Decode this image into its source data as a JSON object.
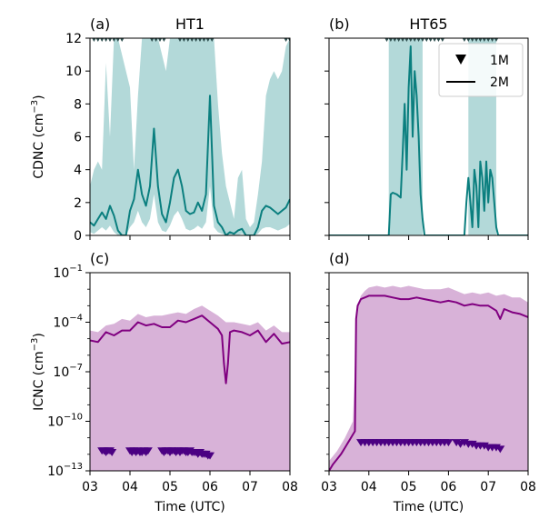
{
  "chart_data": [
    {
      "id": "a",
      "type": "line",
      "panel_label": "(a)",
      "title": "HT1",
      "ylabel": "CDNC (cm$^{-3}$)",
      "ylabel_text": "CDNC (cm",
      "ylabel_sup": "−3",
      "ylabel_end": ")",
      "xlim": [
        3,
        8
      ],
      "ylim": [
        0,
        12
      ],
      "yticks": [
        0,
        2,
        4,
        6,
        8,
        10,
        12
      ],
      "yticklabels": [
        "0",
        "2",
        "4",
        "6",
        "8",
        "10",
        "12"
      ],
      "xticks": [
        3,
        4,
        5,
        6,
        7,
        8
      ],
      "show_xticklabels": false,
      "show_yticklabels": true,
      "color_line": "#0b7f7f",
      "color_fill": "#b3d9d9",
      "series_2m": {
        "x": [
          3.0,
          3.1,
          3.2,
          3.3,
          3.4,
          3.5,
          3.6,
          3.7,
          3.8,
          3.9,
          4.0,
          4.1,
          4.2,
          4.3,
          4.4,
          4.5,
          4.6,
          4.7,
          4.8,
          4.9,
          5.0,
          5.1,
          5.2,
          5.3,
          5.4,
          5.5,
          5.6,
          5.7,
          5.8,
          5.9,
          6.0,
          6.1,
          6.2,
          6.3,
          6.4,
          6.5,
          6.6,
          6.7,
          6.8,
          6.9,
          7.0,
          7.1,
          7.2,
          7.3,
          7.4,
          7.5,
          7.6,
          7.7,
          7.8,
          7.9,
          8.0
        ],
        "y": [
          0.8,
          0.6,
          1.0,
          1.4,
          1.0,
          1.8,
          1.2,
          0.3,
          0.0,
          0.0,
          1.5,
          2.2,
          4.0,
          2.5,
          1.8,
          3.0,
          6.5,
          3.0,
          1.3,
          0.8,
          2.0,
          3.5,
          4.0,
          3.0,
          1.5,
          1.3,
          1.4,
          2.0,
          1.5,
          2.5,
          8.5,
          1.8,
          0.8,
          0.5,
          0.0,
          0.2,
          0.1,
          0.3,
          0.4,
          0.0,
          0.0,
          0.0,
          0.5,
          1.5,
          1.8,
          1.7,
          1.5,
          1.3,
          1.5,
          1.7,
          2.2
        ]
      },
      "band_2m": {
        "x": [
          3.0,
          3.1,
          3.2,
          3.3,
          3.4,
          3.5,
          3.6,
          3.7,
          3.8,
          3.9,
          4.0,
          4.1,
          4.2,
          4.3,
          4.4,
          4.5,
          4.6,
          4.7,
          4.8,
          4.9,
          5.0,
          5.1,
          5.2,
          5.3,
          5.4,
          5.5,
          5.6,
          5.7,
          5.8,
          5.9,
          6.0,
          6.1,
          6.2,
          6.3,
          6.4,
          6.5,
          6.6,
          6.7,
          6.8,
          6.9,
          7.0,
          7.1,
          7.2,
          7.3,
          7.4,
          7.5,
          7.6,
          7.7,
          7.8,
          7.9,
          8.0
        ],
        "upper": [
          3.0,
          4.0,
          4.5,
          4.0,
          10.5,
          6.0,
          12.0,
          12.0,
          11.0,
          10.0,
          9.0,
          4.0,
          8.5,
          12.0,
          12.0,
          12.0,
          12.0,
          12.0,
          11.0,
          10.0,
          12.0,
          12.0,
          12.0,
          12.0,
          12.0,
          12.0,
          12.0,
          12.0,
          12.0,
          12.0,
          12.0,
          12.0,
          8.0,
          5.0,
          3.0,
          2.0,
          1.0,
          3.5,
          4.0,
          1.0,
          0.5,
          0.8,
          2.5,
          4.5,
          8.5,
          9.5,
          10.0,
          9.5,
          10.0,
          11.5,
          12.0
        ],
        "lower": [
          0.2,
          0.1,
          0.3,
          0.5,
          0.3,
          0.6,
          0.2,
          0.0,
          0.0,
          0.0,
          0.5,
          0.8,
          1.5,
          0.8,
          0.5,
          1.0,
          2.5,
          0.8,
          0.3,
          0.2,
          0.6,
          1.2,
          1.5,
          1.0,
          0.4,
          0.3,
          0.4,
          0.6,
          0.4,
          0.8,
          3.0,
          0.5,
          0.2,
          0.1,
          0.0,
          0.0,
          0.0,
          0.0,
          0.1,
          0.0,
          0.0,
          0.0,
          0.1,
          0.4,
          0.5,
          0.5,
          0.4,
          0.3,
          0.4,
          0.5,
          0.7
        ]
      },
      "markers_1m": {
        "x": [
          3.1,
          3.2,
          3.3,
          3.4,
          3.5,
          3.6,
          3.7,
          3.8,
          4.55,
          4.65,
          4.75,
          4.85,
          5.25,
          5.35,
          5.45,
          5.55,
          5.65,
          5.75,
          5.85,
          5.95,
          6.05,
          7.9,
          8.0
        ],
        "y": 12.0
      }
    },
    {
      "id": "b",
      "type": "line",
      "panel_label": "(b)",
      "title": "HT65",
      "xlim": [
        3,
        8
      ],
      "ylim": [
        0,
        12
      ],
      "yticks": [
        0,
        2,
        4,
        6,
        8,
        10,
        12
      ],
      "xticks": [
        3,
        4,
        5,
        6,
        7,
        8
      ],
      "show_xticklabels": false,
      "show_yticklabels": false,
      "color_line": "#0b7f7f",
      "color_fill": "#b3d9d9",
      "legend": {
        "position": "upper right",
        "entries": [
          {
            "marker": "triangle-down",
            "label": "1M"
          },
          {
            "marker": "line",
            "label": "2M"
          }
        ]
      },
      "series_2m": {
        "x": [
          3.0,
          4.5,
          4.55,
          4.6,
          4.7,
          4.8,
          4.85,
          4.9,
          4.95,
          5.0,
          5.05,
          5.1,
          5.15,
          5.2,
          5.25,
          5.3,
          5.35,
          5.4,
          6.4,
          6.45,
          6.5,
          6.55,
          6.6,
          6.65,
          6.7,
          6.75,
          6.8,
          6.85,
          6.9,
          6.95,
          7.0,
          7.05,
          7.1,
          7.15,
          7.2,
          7.25,
          8.0
        ],
        "y": [
          0.0,
          0.0,
          2.5,
          2.6,
          2.5,
          2.3,
          5.0,
          8.0,
          4.0,
          9.0,
          11.5,
          6.0,
          10.0,
          8.5,
          6.0,
          2.5,
          1.0,
          0.0,
          0.0,
          2.0,
          3.5,
          2.0,
          0.5,
          4.0,
          3.0,
          0.5,
          4.5,
          3.5,
          1.5,
          4.5,
          2.0,
          4.0,
          3.5,
          2.0,
          0.5,
          0.0,
          0.0
        ]
      },
      "band_2m": {
        "segments": [
          {
            "x": [
              4.5,
              5.35
            ],
            "upper": 12.0,
            "lower": 0.0
          },
          {
            "x": [
              6.5,
              7.2
            ],
            "upper": 12.0,
            "lower": 0.0
          }
        ]
      },
      "markers_1m": {
        "x": [
          4.45,
          4.55,
          4.65,
          4.75,
          4.85,
          4.95,
          5.05,
          5.15,
          5.25,
          5.35,
          5.45,
          5.55,
          5.65,
          5.75,
          5.85,
          6.4,
          6.5,
          6.6,
          6.7,
          6.8,
          6.9,
          7.0,
          7.1,
          7.2
        ],
        "y": 12.0
      }
    },
    {
      "id": "c",
      "type": "line",
      "panel_label": "(c)",
      "ylabel": "ICNC (cm$^{-3}$)",
      "ylabel_text": "ICNC (cm",
      "ylabel_sup": "−3",
      "ylabel_end": ")",
      "xlabel": "Time (UTC)",
      "yscale": "log",
      "xlim": [
        3,
        8
      ],
      "ylim": [
        1e-13,
        0.1
      ],
      "yticks_exp": [
        -1,
        -4,
        -7,
        -10,
        -13
      ],
      "yticklabel_base": "10",
      "yticklabel_exp": [
        "−1",
        "−4",
        "−7",
        "−10",
        "−13"
      ],
      "xticks": [
        3,
        4,
        5,
        6,
        7,
        8
      ],
      "xticklabels": [
        "03",
        "04",
        "05",
        "06",
        "07",
        "08"
      ],
      "show_yticklabels": true,
      "color_line": "#800080",
      "color_fill": "#d8b2d8",
      "color_markers": "#4b0082",
      "series_2m_log10": {
        "x": [
          3.0,
          3.2,
          3.4,
          3.6,
          3.8,
          4.0,
          4.2,
          4.4,
          4.6,
          4.8,
          5.0,
          5.2,
          5.4,
          5.6,
          5.8,
          6.0,
          6.2,
          6.3,
          6.35,
          6.4,
          6.45,
          6.5,
          6.6,
          6.8,
          7.0,
          7.2,
          7.4,
          7.6,
          7.8,
          8.0
        ],
        "y": [
          -5.1,
          -5.2,
          -4.6,
          -4.8,
          -4.5,
          -4.5,
          -4.0,
          -4.2,
          -4.1,
          -4.3,
          -4.3,
          -3.9,
          -4.0,
          -3.8,
          -3.6,
          -4.0,
          -4.4,
          -4.8,
          -6.5,
          -7.7,
          -6.5,
          -4.6,
          -4.5,
          -4.6,
          -4.8,
          -4.5,
          -5.2,
          -4.7,
          -5.3,
          -5.2
        ]
      },
      "band_upper_log10": {
        "x": [
          3.0,
          3.2,
          3.4,
          3.6,
          3.8,
          4.0,
          4.2,
          4.4,
          4.6,
          4.8,
          5.0,
          5.2,
          5.4,
          5.6,
          5.8,
          6.0,
          6.2,
          6.4,
          6.6,
          6.8,
          7.0,
          7.2,
          7.4,
          7.6,
          7.8,
          8.0
        ],
        "y": [
          -4.5,
          -4.6,
          -4.2,
          -4.1,
          -3.8,
          -3.9,
          -3.5,
          -3.7,
          -3.6,
          -3.6,
          -3.5,
          -3.4,
          -3.5,
          -3.2,
          -3.0,
          -3.3,
          -3.6,
          -4.0,
          -4.0,
          -4.1,
          -4.2,
          -4.0,
          -4.5,
          -4.2,
          -4.6,
          -4.6
        ]
      },
      "markers_1m_log10": {
        "x": [
          3.3,
          3.35,
          3.4,
          3.45,
          3.5,
          3.55,
          4.0,
          4.05,
          4.1,
          4.15,
          4.2,
          4.25,
          4.3,
          4.35,
          4.4,
          4.45,
          4.8,
          4.85,
          4.9,
          4.95,
          5.0,
          5.05,
          5.1,
          5.15,
          5.2,
          5.25,
          5.3,
          5.35,
          5.4,
          5.45,
          5.5,
          5.55,
          5.6,
          5.65,
          5.7,
          5.75,
          5.8,
          5.85,
          5.9,
          5.95,
          6.0
        ],
        "y": [
          -11.8,
          -11.8,
          -11.9,
          -11.8,
          -11.8,
          -11.9,
          -11.8,
          -11.9,
          -11.8,
          -11.9,
          -11.8,
          -11.9,
          -11.9,
          -11.8,
          -11.9,
          -11.8,
          -11.8,
          -11.9,
          -11.8,
          -11.8,
          -11.9,
          -11.8,
          -11.8,
          -11.9,
          -11.8,
          -11.9,
          -11.8,
          -11.8,
          -11.9,
          -11.9,
          -11.8,
          -11.9,
          -11.9,
          -11.9,
          -12.0,
          -11.9,
          -12.0,
          -12.0,
          -12.0,
          -12.1,
          -12.1
        ]
      }
    },
    {
      "id": "d",
      "type": "line",
      "panel_label": "(d)",
      "xlabel": "Time (UTC)",
      "yscale": "log",
      "xlim": [
        3,
        8
      ],
      "ylim": [
        1e-13,
        0.1
      ],
      "yticks_exp": [
        -1,
        -4,
        -7,
        -10,
        -13
      ],
      "xticks": [
        3,
        4,
        5,
        6,
        7,
        8
      ],
      "xticklabels": [
        "03",
        "04",
        "05",
        "06",
        "07",
        "08"
      ],
      "show_yticklabels": false,
      "color_line": "#800080",
      "color_fill": "#d8b2d8",
      "color_markers": "#4b0082",
      "series_2m_log10": {
        "x": [
          3.0,
          3.1,
          3.2,
          3.3,
          3.4,
          3.5,
          3.6,
          3.65,
          3.68,
          3.72,
          3.8,
          3.9,
          4.0,
          4.2,
          4.4,
          4.6,
          4.8,
          5.0,
          5.2,
          5.4,
          5.6,
          5.8,
          6.0,
          6.2,
          6.4,
          6.6,
          6.8,
          7.0,
          7.2,
          7.3,
          7.4,
          7.6,
          7.8,
          8.0
        ],
        "y": [
          -13.0,
          -12.6,
          -12.3,
          -12.0,
          -11.6,
          -11.2,
          -10.8,
          -10.6,
          -3.8,
          -3.0,
          -2.6,
          -2.5,
          -2.4,
          -2.4,
          -2.4,
          -2.5,
          -2.6,
          -2.6,
          -2.5,
          -2.6,
          -2.7,
          -2.8,
          -2.7,
          -2.8,
          -3.0,
          -2.9,
          -3.0,
          -3.0,
          -3.3,
          -3.8,
          -3.2,
          -3.4,
          -3.5,
          -3.7
        ]
      },
      "band_upper_log10": {
        "x": [
          3.0,
          3.2,
          3.4,
          3.6,
          3.7,
          3.8,
          3.9,
          4.0,
          4.2,
          4.4,
          4.6,
          4.8,
          5.0,
          5.2,
          5.4,
          5.6,
          5.8,
          6.0,
          6.2,
          6.4,
          6.6,
          6.8,
          7.0,
          7.2,
          7.4,
          7.6,
          7.8,
          8.0
        ],
        "y": [
          -12.4,
          -11.8,
          -11.0,
          -10.0,
          -3.2,
          -2.4,
          -2.1,
          -1.9,
          -1.8,
          -1.9,
          -1.8,
          -1.9,
          -1.8,
          -1.9,
          -2.0,
          -2.0,
          -2.0,
          -1.9,
          -2.1,
          -2.3,
          -2.2,
          -2.3,
          -2.2,
          -2.4,
          -2.3,
          -2.5,
          -2.5,
          -2.8
        ]
      },
      "markers_1m_log10": {
        "x": [
          3.8,
          3.9,
          4.0,
          4.1,
          4.2,
          4.3,
          4.4,
          4.5,
          4.6,
          4.7,
          4.8,
          4.9,
          5.0,
          5.1,
          5.2,
          5.3,
          5.4,
          5.5,
          5.6,
          5.7,
          5.8,
          5.9,
          6.0,
          6.2,
          6.3,
          6.4,
          6.5,
          6.6,
          6.7,
          6.8,
          6.9,
          7.0,
          7.1,
          7.2,
          7.3
        ],
        "y": [
          -11.3,
          -11.3,
          -11.3,
          -11.3,
          -11.3,
          -11.3,
          -11.3,
          -11.3,
          -11.3,
          -11.3,
          -11.3,
          -11.3,
          -11.3,
          -11.3,
          -11.3,
          -11.3,
          -11.3,
          -11.3,
          -11.3,
          -11.3,
          -11.3,
          -11.3,
          -11.3,
          -11.3,
          -11.4,
          -11.3,
          -11.4,
          -11.4,
          -11.5,
          -11.5,
          -11.5,
          -11.6,
          -11.6,
          -11.6,
          -11.7
        ]
      }
    }
  ]
}
